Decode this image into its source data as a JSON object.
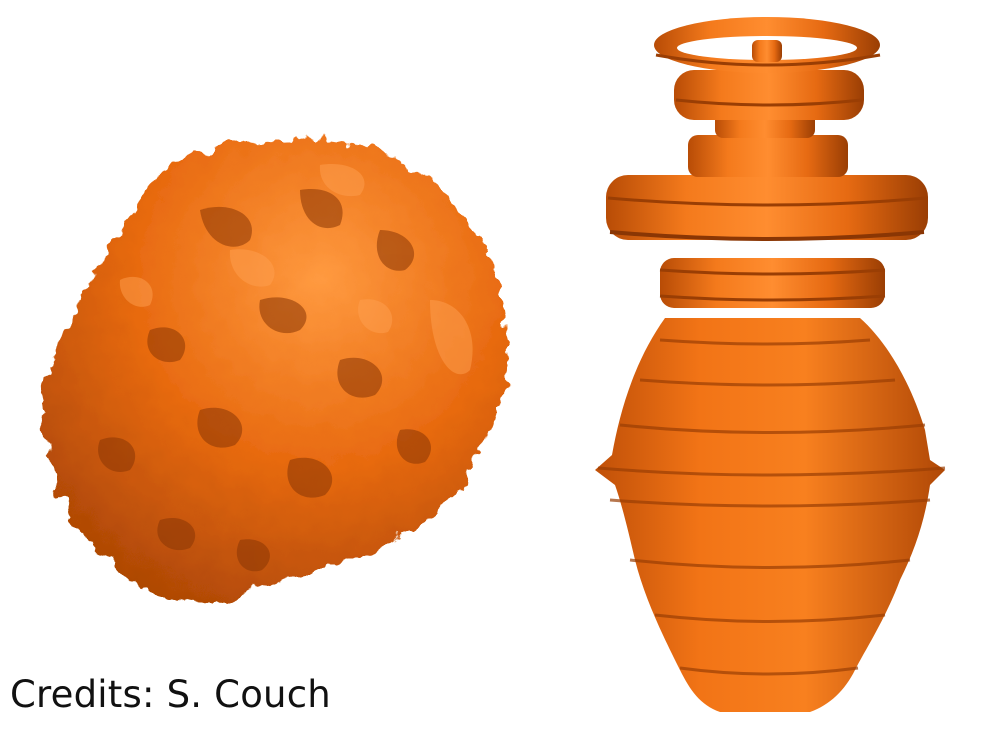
{
  "credits": "Credits: S. Couch",
  "colors": {
    "background": "#ffffff",
    "surface_base": "#e86a10",
    "surface_light": "#ff8a2e",
    "surface_dark": "#8a3604",
    "text": "#111111"
  },
  "figures": [
    {
      "name": "turbulent-3d-isosurface"
    },
    {
      "name": "axisymmetric-2d-isosurface"
    }
  ]
}
